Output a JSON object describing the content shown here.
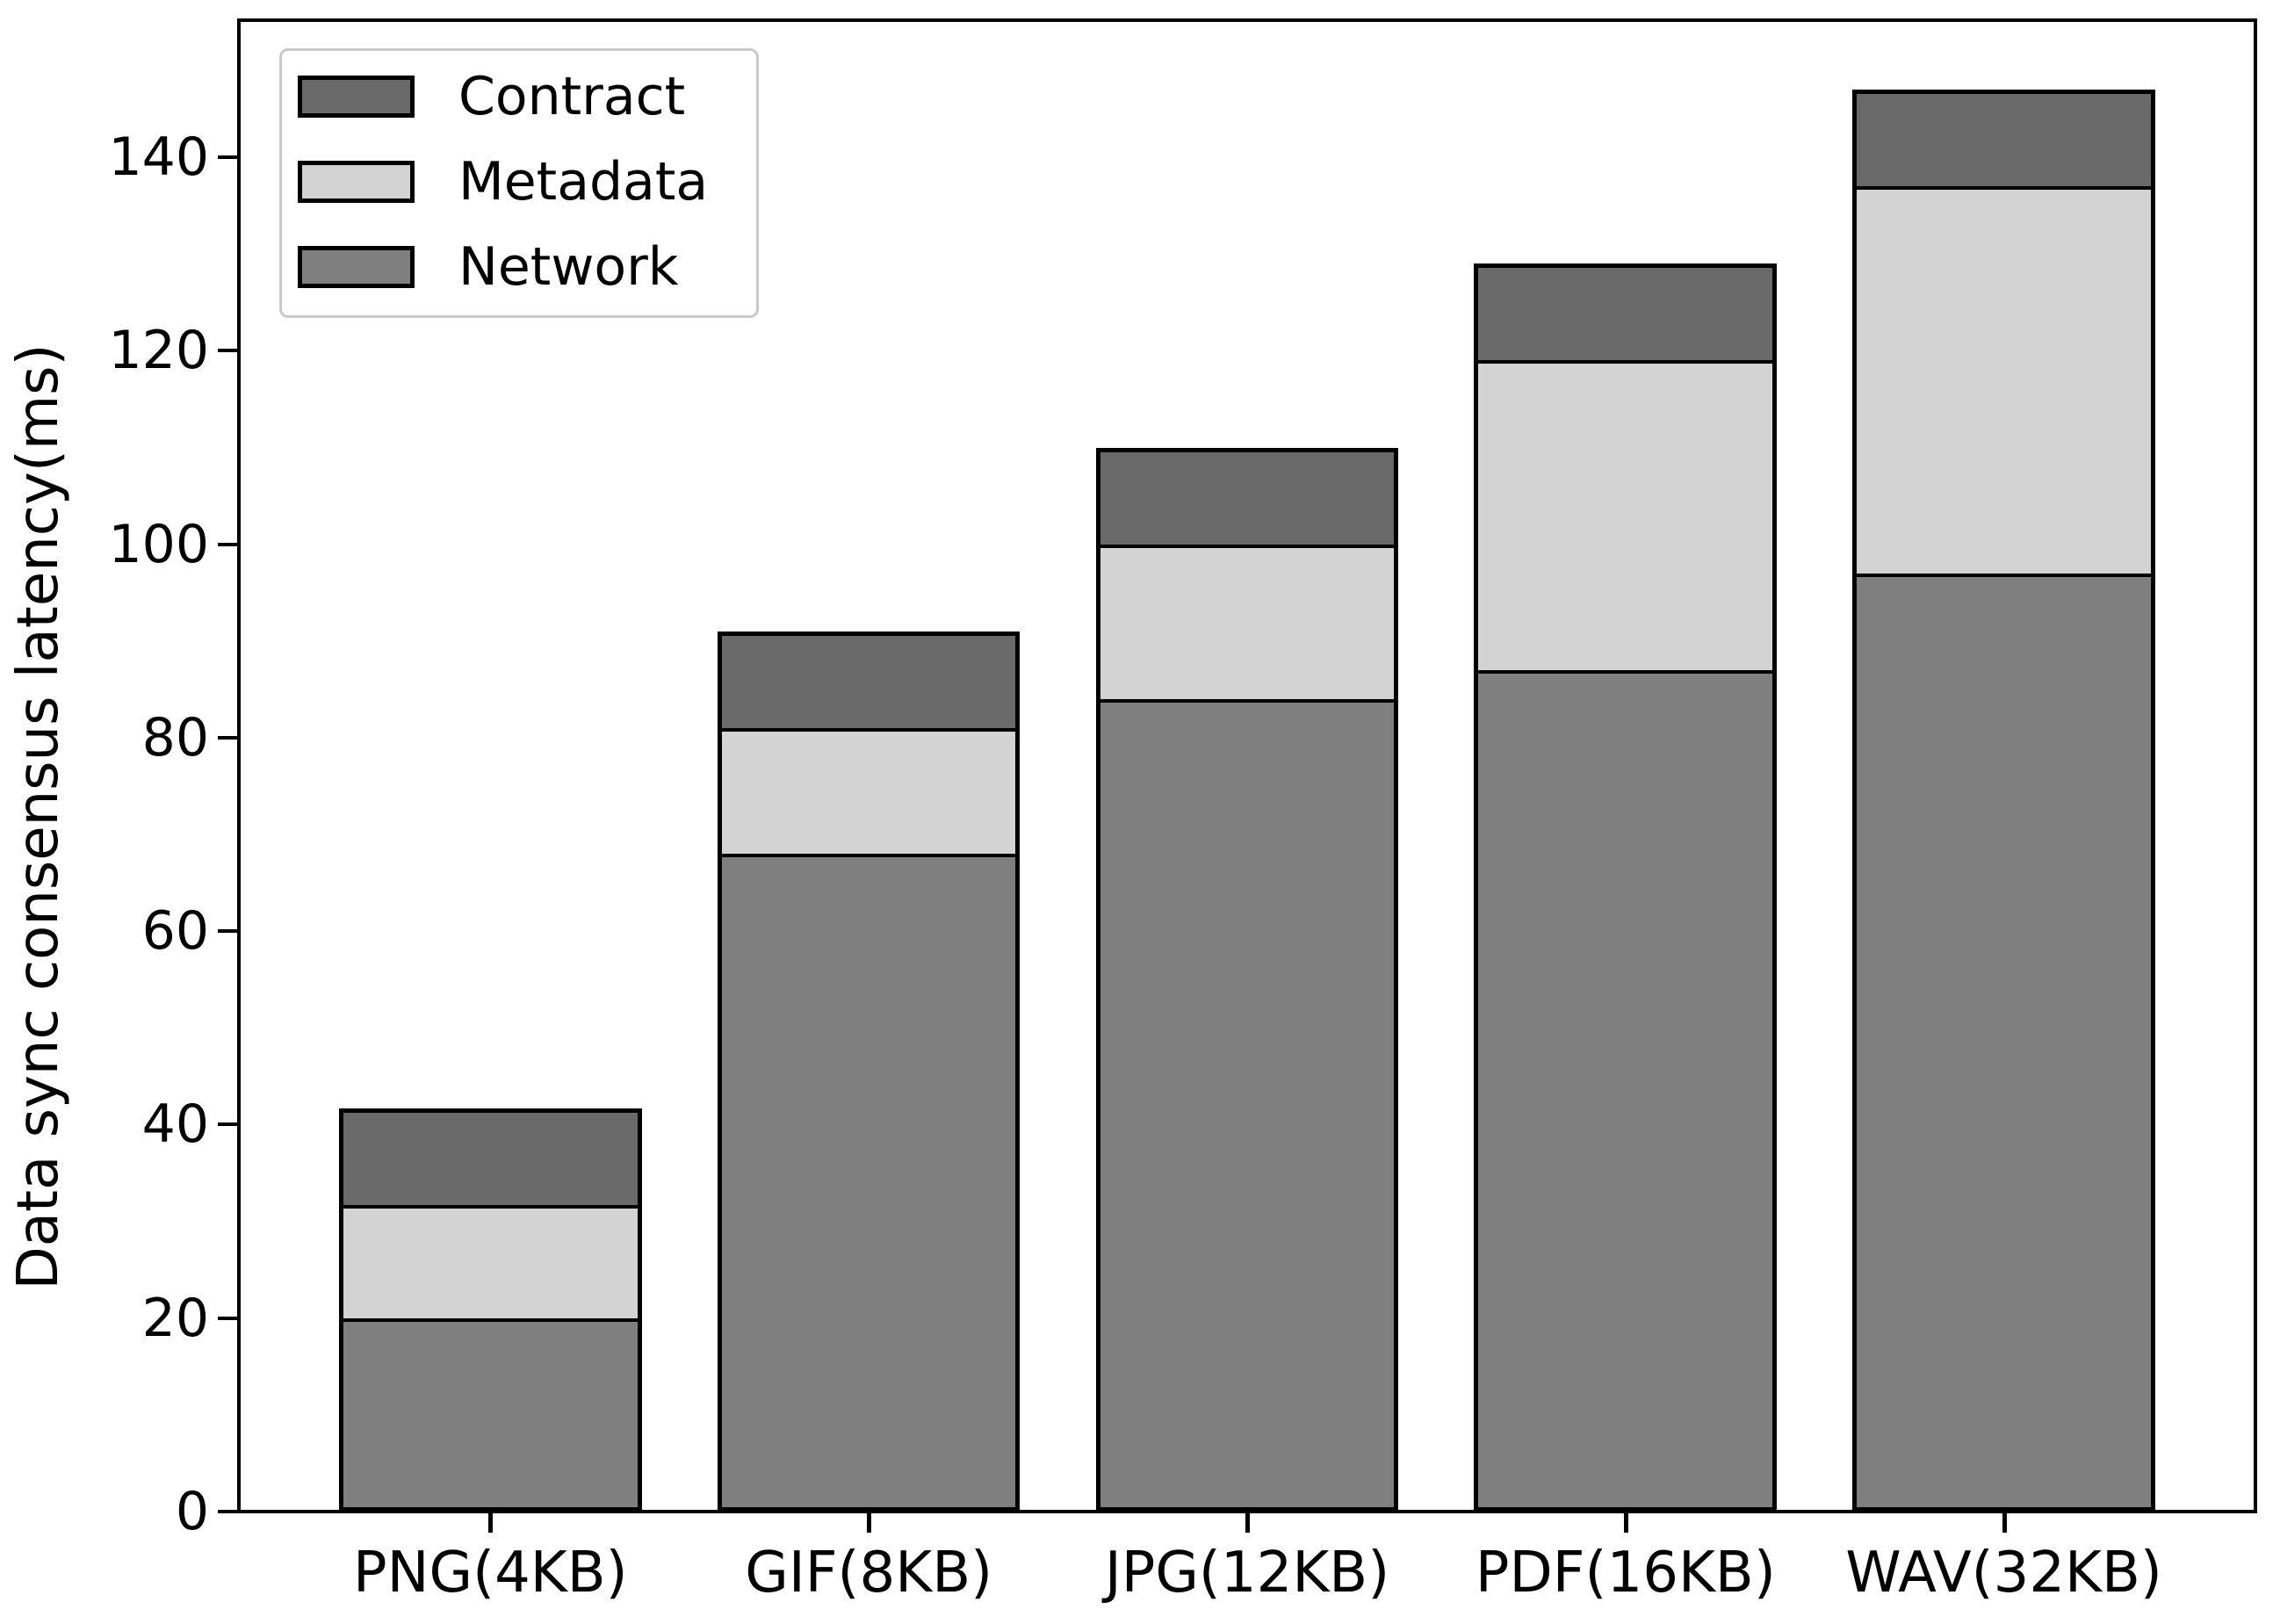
{
  "chart_data": {
    "type": "bar",
    "stacked": true,
    "title": "",
    "xlabel": "",
    "ylabel": "Data sync consensus latency(ms)",
    "categories": [
      "PNG(4KB)",
      "GIF(8KB)",
      "JPG(12KB)",
      "PDF(16KB)",
      "WAV(32KB)"
    ],
    "series": [
      {
        "name": "Network",
        "color": "#7f7f7f",
        "values": [
          20,
          68,
          84,
          87,
          97
        ]
      },
      {
        "name": "Metadata",
        "color": "#d3d3d3",
        "values": [
          11.7,
          13,
          16,
          32,
          40
        ]
      },
      {
        "name": "Contract",
        "color": "#696969",
        "values": [
          10,
          10,
          10,
          10,
          10
        ]
      }
    ],
    "stack_order_bottom_to_top": [
      "Network",
      "Metadata",
      "Contract"
    ],
    "stack_totals": [
      41.7,
      91,
      110,
      129,
      147
    ],
    "yticks": [
      0,
      20,
      40,
      60,
      80,
      100,
      120,
      140
    ],
    "ylim": [
      0,
      154
    ],
    "grid": false,
    "bar_edge_color": "#000000",
    "legend": {
      "position": "upper-left",
      "entries": [
        {
          "label": "Contract",
          "color": "#696969"
        },
        {
          "label": "Metadata",
          "color": "#d3d3d3"
        },
        {
          "label": "Network",
          "color": "#7f7f7f"
        }
      ]
    }
  }
}
